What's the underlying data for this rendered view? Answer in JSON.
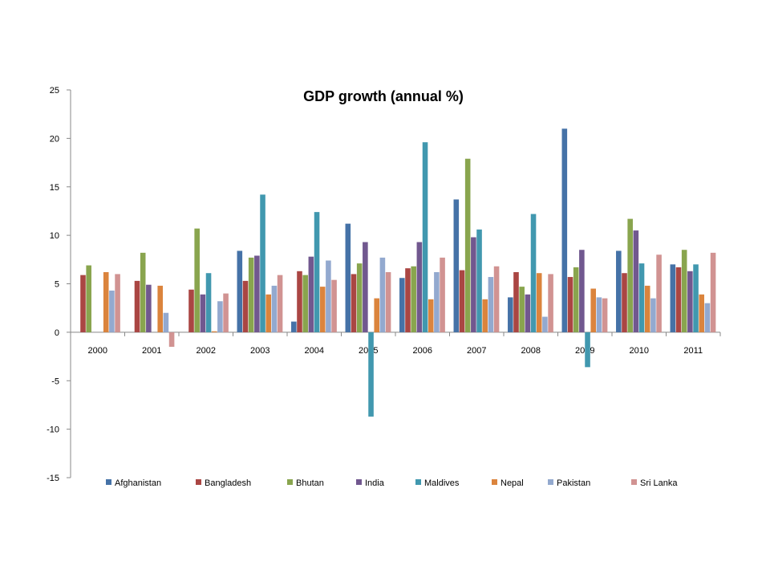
{
  "chart_data": {
    "type": "bar",
    "title": "GDP growth (annual %)",
    "xlabel": "",
    "ylabel": "",
    "ylim": [
      -15,
      25
    ],
    "yticks": [
      -15,
      -10,
      -5,
      0,
      5,
      10,
      15,
      20,
      25
    ],
    "grid": false,
    "legend_position": "bottom",
    "categories": [
      "2000",
      "2001",
      "2002",
      "2003",
      "2004",
      "2005",
      "2006",
      "2007",
      "2008",
      "2009",
      "2010",
      "2011"
    ],
    "series": [
      {
        "name": "Afghanistan",
        "color": "#4572A7",
        "values": [
          null,
          null,
          null,
          8.4,
          1.1,
          11.2,
          5.6,
          13.7,
          3.6,
          21.0,
          8.4,
          7.0
        ]
      },
      {
        "name": "Bangladesh",
        "color": "#AA4643",
        "values": [
          5.9,
          5.3,
          4.4,
          5.3,
          6.3,
          6.0,
          6.6,
          6.4,
          6.2,
          5.7,
          6.1,
          6.7
        ]
      },
      {
        "name": "Bhutan",
        "color": "#89A54E",
        "values": [
          6.9,
          8.2,
          10.7,
          7.7,
          5.9,
          7.1,
          6.8,
          17.9,
          4.7,
          6.7,
          11.7,
          8.5
        ]
      },
      {
        "name": "India",
        "color": "#71588F",
        "values": [
          null,
          4.9,
          3.9,
          7.9,
          7.8,
          9.3,
          9.3,
          9.8,
          3.9,
          8.5,
          10.5,
          6.3
        ]
      },
      {
        "name": "Maldives",
        "color": "#4198AF",
        "values": [
          null,
          null,
          6.1,
          14.2,
          12.4,
          -8.7,
          19.6,
          10.6,
          12.2,
          -3.6,
          7.1,
          7.0
        ]
      },
      {
        "name": "Nepal",
        "color": "#DB843D",
        "values": [
          6.2,
          4.8,
          0.1,
          3.9,
          4.7,
          3.5,
          3.4,
          3.4,
          6.1,
          4.5,
          4.8,
          3.9
        ]
      },
      {
        "name": "Pakistan",
        "color": "#93A9CF",
        "values": [
          4.3,
          2.0,
          3.2,
          4.8,
          7.4,
          7.7,
          6.2,
          5.7,
          1.6,
          3.6,
          3.5,
          3.0
        ]
      },
      {
        "name": "Sri Lanka",
        "color": "#D19392",
        "values": [
          6.0,
          -1.5,
          4.0,
          5.9,
          5.4,
          6.2,
          7.7,
          6.8,
          6.0,
          3.5,
          8.0,
          8.2
        ]
      }
    ]
  }
}
